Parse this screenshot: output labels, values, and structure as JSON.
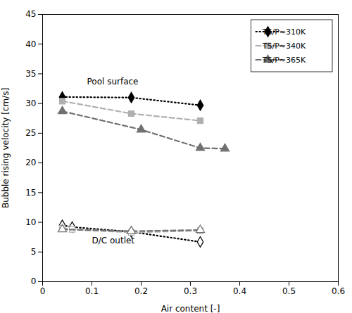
{
  "chart_data": {
    "type": "line",
    "xlabel": "Air content [-]",
    "ylabel": "Bubble rising velocity [cm/s]",
    "xlim": [
      0.0,
      0.6
    ],
    "ylim": [
      0,
      45
    ],
    "xticks": [
      0.0,
      0.1,
      0.2,
      0.3,
      0.4,
      0.5,
      0.6
    ],
    "yticks": [
      0,
      5,
      10,
      15,
      20,
      25,
      30,
      35,
      40,
      45
    ],
    "grid": false,
    "legend": "upper right",
    "series": [
      {
        "name": "TS/P≈310K",
        "color": "#000000",
        "line_style": "dotted",
        "marker": "diamond",
        "x": [
          0.04,
          0.18,
          0.32
        ],
        "values": [
          31.1,
          31.0,
          29.7
        ]
      },
      {
        "name": "TS/P≈310K",
        "color": "#000000",
        "line_style": "dotted",
        "marker": "diamond-open",
        "x": [
          0.04,
          0.06,
          0.18,
          0.32
        ],
        "values": [
          9.5,
          9.2,
          8.4,
          6.7
        ]
      },
      {
        "name": "TS/P≈340K",
        "color": "#b0b0b0",
        "line_style": "dashed",
        "marker": "square",
        "x": [
          0.04,
          0.18,
          0.32
        ],
        "values": [
          30.4,
          28.3,
          27.1
        ]
      },
      {
        "name": "TS/P≈340K",
        "color": "#b0b0b0",
        "line_style": "dashed",
        "marker": "square-open",
        "x": [
          0.04,
          0.06,
          0.18,
          0.32
        ],
        "values": [
          9.0,
          8.8,
          8.3,
          8.6
        ]
      },
      {
        "name": "TS/P≈365K",
        "color": "#707070",
        "line_style": "dashed",
        "marker": "triangle",
        "x": [
          0.04,
          0.2,
          0.32,
          0.37
        ],
        "values": [
          28.7,
          25.6,
          22.5,
          22.4
        ]
      },
      {
        "name": "TS/P≈365K",
        "color": "#707070",
        "line_style": "dashed",
        "marker": "triangle-open",
        "x": [
          0.04,
          0.18,
          0.32
        ],
        "values": [
          8.8,
          8.5,
          8.7
        ]
      }
    ],
    "annotations": [
      {
        "text": "Pool surface",
        "x": 0.09,
        "y": 33.2
      },
      {
        "text": "D/C outlet",
        "x": 0.1,
        "y": 6.5
      }
    ]
  }
}
